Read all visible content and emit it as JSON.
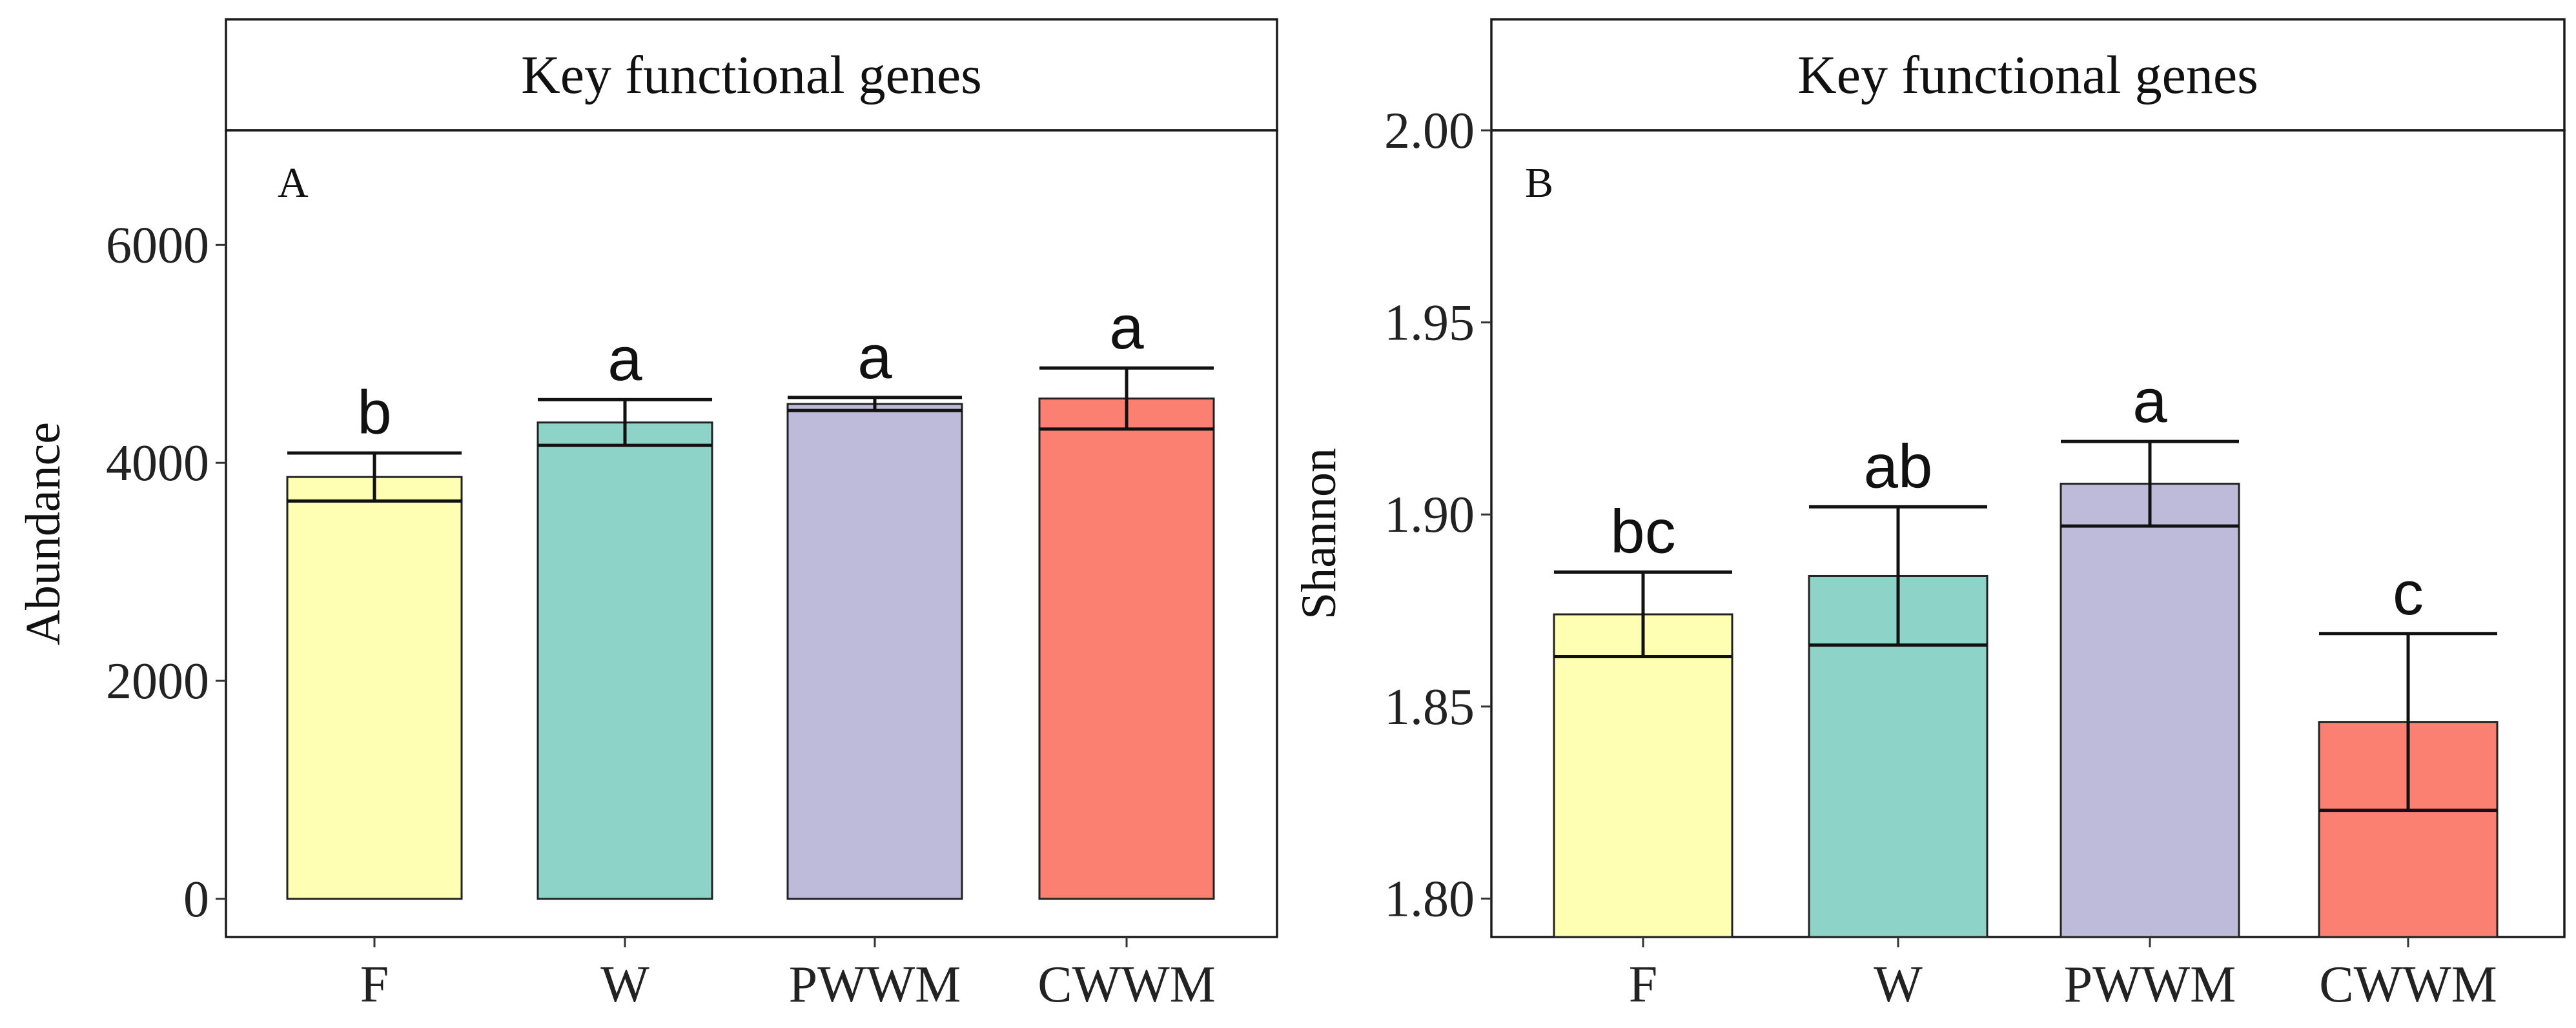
{
  "chart_data": [
    {
      "type": "bar",
      "panel": "A",
      "title": "Key functional genes",
      "xlabel": "",
      "ylabel": "Abundance",
      "ylim": [
        -350,
        7050
      ],
      "yticks": [
        0,
        2000,
        4000,
        6000
      ],
      "ytick_labels": [
        "0",
        "2000",
        "4000",
        "6000"
      ],
      "categories": [
        "F",
        "W",
        "PWWM",
        "CWWM"
      ],
      "values": [
        3870,
        4370,
        4540,
        4590
      ],
      "error": [
        220,
        210,
        60,
        280
      ],
      "letters": [
        "b",
        "a",
        "a",
        "a"
      ],
      "colors": [
        "#FFFFB3",
        "#8DD3C7",
        "#BEBADA",
        "#FB8072"
      ]
    },
    {
      "type": "bar",
      "panel": "B",
      "title": "Key functional genes",
      "xlabel": "",
      "ylabel": "Shannon",
      "ylim": [
        1.79,
        2.0
      ],
      "yticks": [
        1.8,
        1.85,
        1.9,
        1.95,
        2.0
      ],
      "ytick_labels": [
        "1.80",
        "1.85",
        "1.90",
        "1.95",
        "2.00"
      ],
      "categories": [
        "F",
        "W",
        "PWWM",
        "CWWM"
      ],
      "values": [
        1.874,
        1.884,
        1.908,
        1.846
      ],
      "error": [
        0.011,
        0.018,
        0.011,
        0.023
      ],
      "letters": [
        "bc",
        "ab",
        "a",
        "c"
      ],
      "colors": [
        "#FFFFB3",
        "#8DD3C7",
        "#BEBADA",
        "#FB8072"
      ]
    }
  ]
}
